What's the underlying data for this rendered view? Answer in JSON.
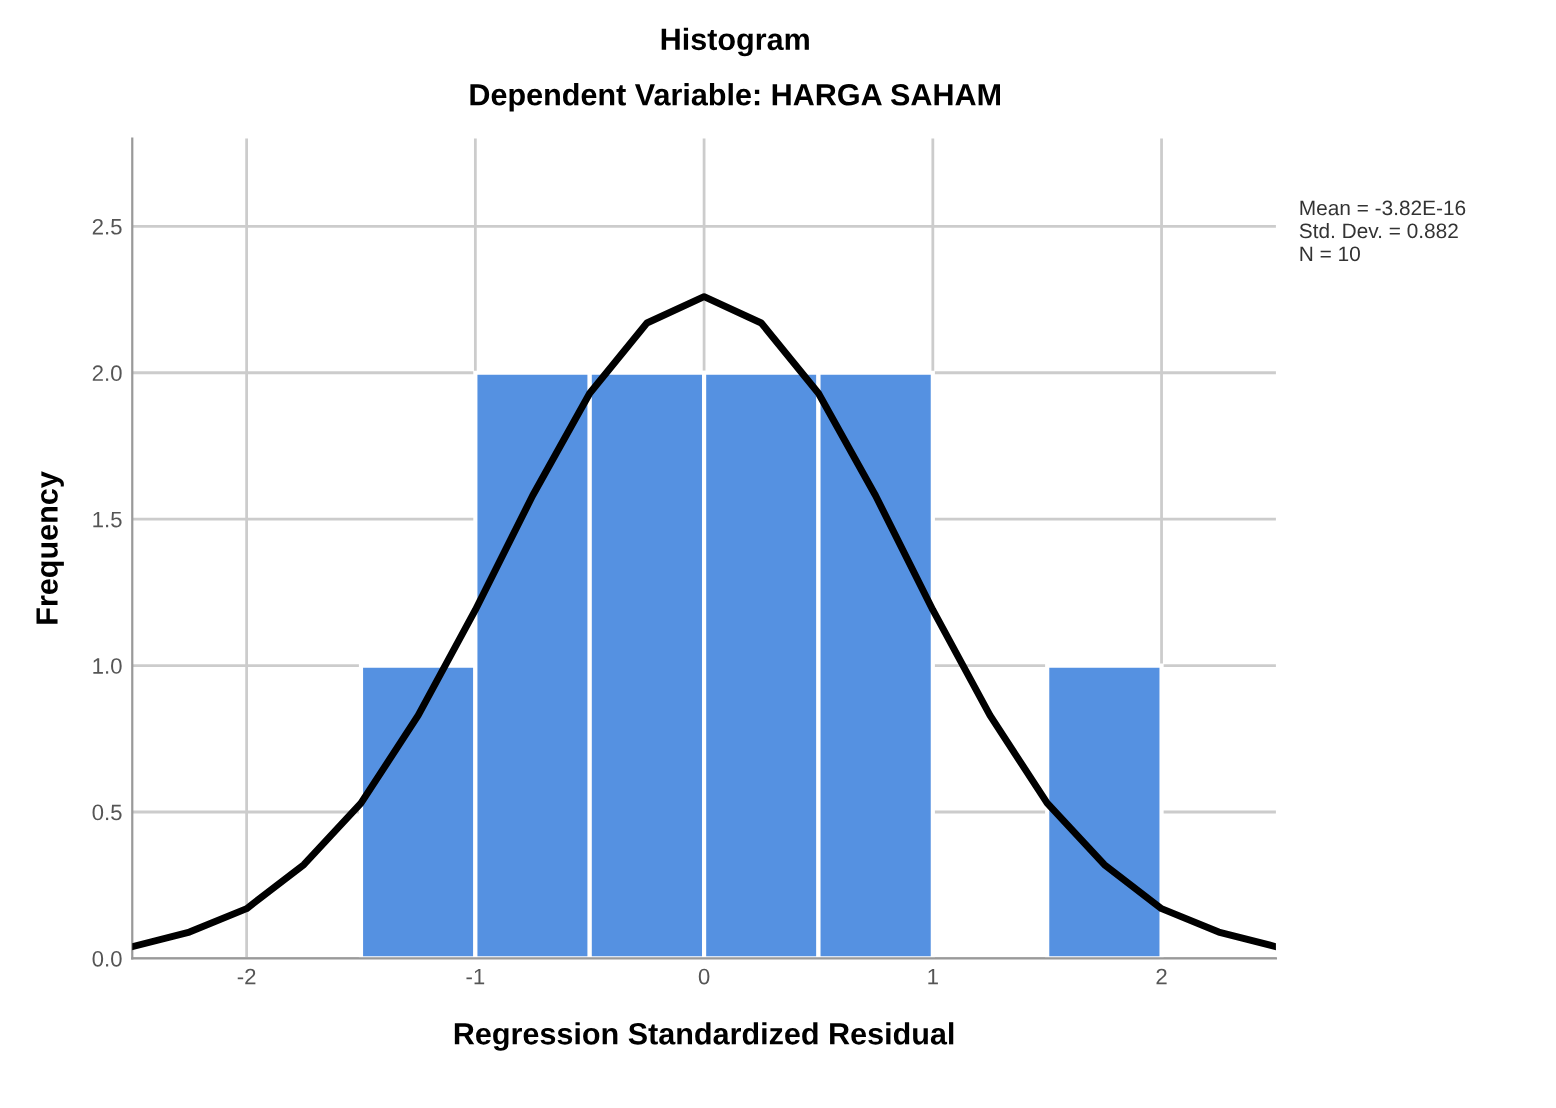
{
  "chart_data": [
    {
      "type": "histogram",
      "title": "Histogram",
      "subtitle": "Dependent Variable: HARGA SAHAM",
      "xlabel": "Regression Standardized Residual",
      "ylabel": "Frequency",
      "bins": [
        -1.5,
        -1.0,
        -0.5,
        0.0,
        0.5,
        1.0,
        1.5,
        2.0
      ],
      "values": [
        1,
        2,
        2,
        2,
        2,
        0,
        1
      ],
      "color": "#5591e1",
      "series": [
        {
          "type": "line",
          "color": "#000000",
          "x": [
            -2.5,
            -2.25,
            -2.0,
            -1.75,
            -1.5,
            -1.25,
            -1.0,
            -0.75,
            -0.5,
            -0.25,
            0.0,
            0.25,
            0.5,
            0.75,
            1.0,
            1.25,
            1.5,
            1.75,
            2.0,
            2.25,
            2.5
          ],
          "values": [
            0.04,
            0.09,
            0.17,
            0.32,
            0.53,
            0.83,
            1.19,
            1.58,
            1.93,
            2.17,
            2.26,
            2.17,
            1.93,
            1.58,
            1.19,
            0.83,
            0.53,
            0.32,
            0.17,
            0.09,
            0.04
          ]
        }
      ],
      "xlim": [
        -2.5,
        2.5
      ],
      "ylim": [
        0,
        2.8
      ],
      "xticks": [
        -2,
        -1,
        0,
        1,
        2
      ],
      "yticks": [
        {
          "value": 0,
          "label": "0.0"
        },
        {
          "value": 0.5,
          "label": "0.5"
        },
        {
          "value": 1,
          "label": "1.0"
        },
        {
          "value": 1.5,
          "label": "1.5"
        },
        {
          "value": 2,
          "label": "2.0"
        },
        {
          "value": 2.5,
          "label": "2.5"
        }
      ],
      "grid": true,
      "legend": false,
      "annotations": [
        "Mean = -3.82E-16",
        "Std. Dev. = 0.882",
        "N = 10"
      ]
    }
  ]
}
